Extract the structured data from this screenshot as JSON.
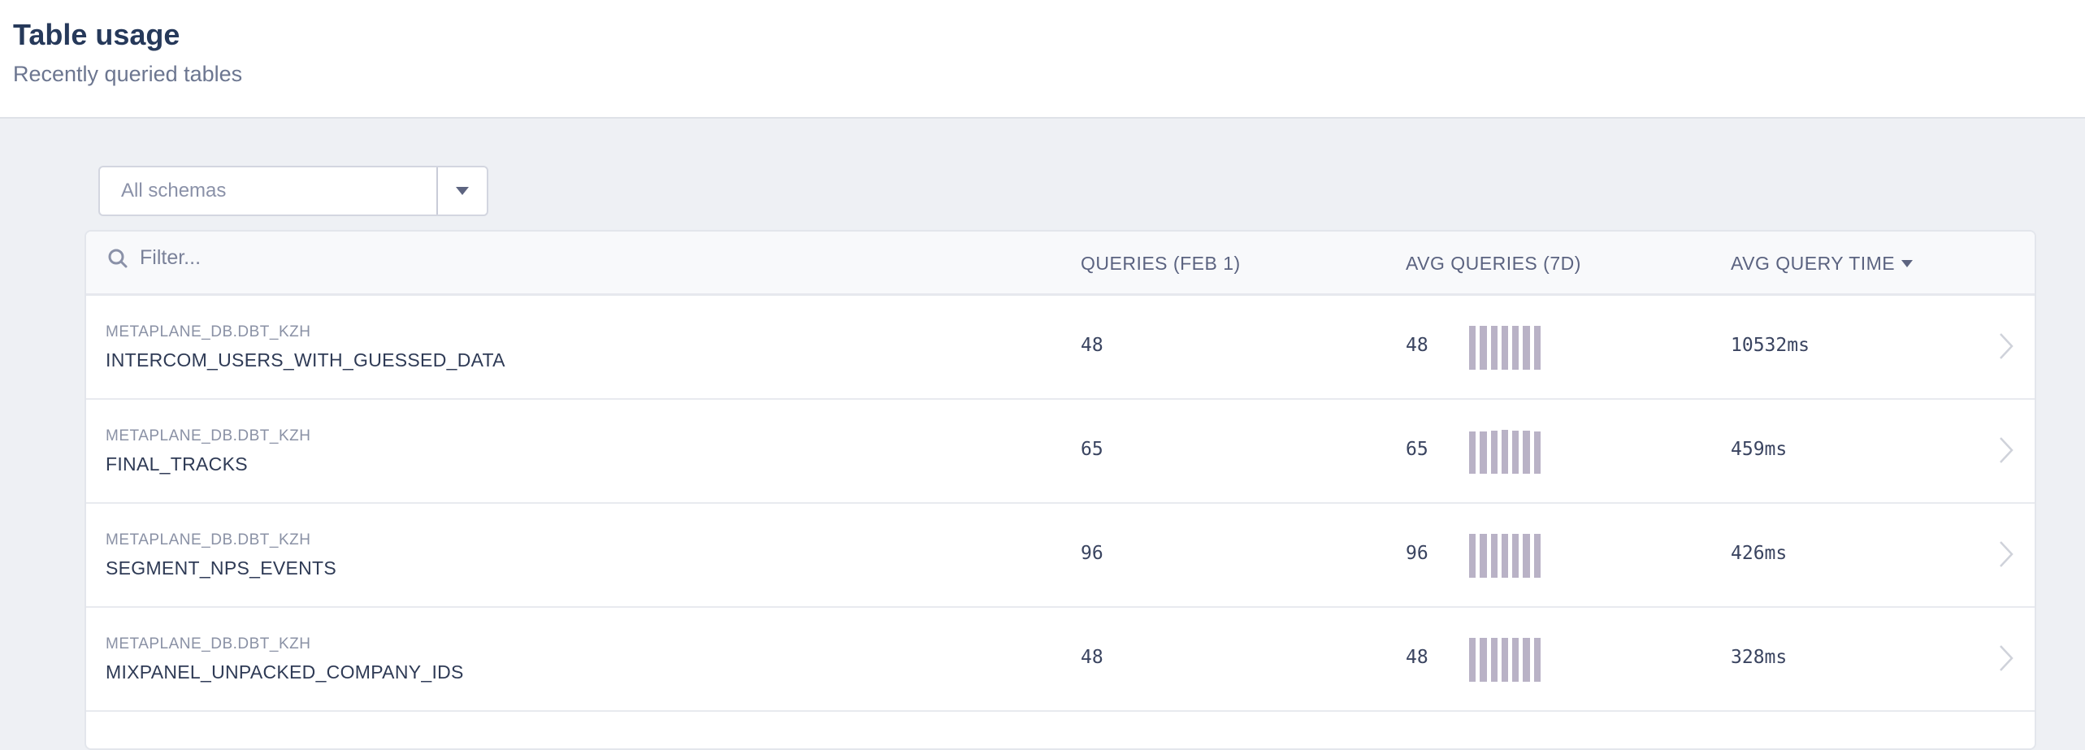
{
  "header": {
    "title": "Table usage",
    "subtitle": "Recently queried tables"
  },
  "schema_select": {
    "value": "All schemas"
  },
  "table": {
    "filter_placeholder": "Filter...",
    "columns": {
      "queries": "QUERIES (FEB 1)",
      "avg_queries": "AVG QUERIES (7D)",
      "avg_query_time": "AVG QUERY TIME"
    },
    "sort": {
      "column": "avg_query_time",
      "direction": "descending"
    },
    "sparkline_color": "#b9b2c6",
    "rows": [
      {
        "schema": "METAPLANE_DB.DBT_KZH",
        "name": "INTERCOM_USERS_WITH_GUESSED_DATA",
        "queries": "48",
        "avg_queries": "48",
        "avg_time": "10532ms",
        "spark": [
          48,
          48,
          48,
          48,
          48,
          48,
          48
        ]
      },
      {
        "schema": "METAPLANE_DB.DBT_KZH",
        "name": "FINAL_TRACKS",
        "queries": "65",
        "avg_queries": "65",
        "avg_time": "459ms",
        "spark": [
          64,
          64,
          65,
          66,
          65,
          65,
          64
        ]
      },
      {
        "schema": "METAPLANE_DB.DBT_KZH",
        "name": "SEGMENT_NPS_EVENTS",
        "queries": "96",
        "avg_queries": "96",
        "avg_time": "426ms",
        "spark": [
          96,
          96,
          96,
          96,
          96,
          96,
          96
        ]
      },
      {
        "schema": "METAPLANE_DB.DBT_KZH",
        "name": "MIXPANEL_UNPACKED_COMPANY_IDS",
        "queries": "48",
        "avg_queries": "48",
        "avg_time": "328ms",
        "spark": [
          48,
          48,
          48,
          48,
          48,
          48,
          48
        ]
      }
    ]
  }
}
